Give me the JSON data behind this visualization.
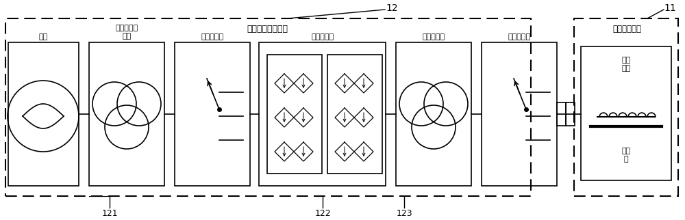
{
  "bg": "#ffffff",
  "fig_w": 10.0,
  "fig_h": 3.22,
  "traction_label": "牵引系统电路单元",
  "motor_sim_label": "电机模拟单元",
  "block_labels": [
    "电网",
    "第一输入变\n压器",
    "输入开关柜",
    "第一变流器",
    "输出变压器",
    "输出开关柜"
  ],
  "maglev_label": "磁浮\n列车",
  "stator_label": "长定\n子",
  "label_12": "12",
  "label_11": "11",
  "label_121": "121",
  "label_122": "122",
  "label_123": "123"
}
